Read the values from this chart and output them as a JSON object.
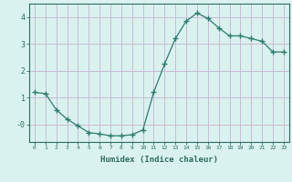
{
  "x": [
    0,
    1,
    2,
    3,
    4,
    5,
    6,
    7,
    8,
    9,
    10,
    11,
    12,
    13,
    14,
    15,
    16,
    17,
    18,
    19,
    20,
    21,
    22,
    23
  ],
  "y": [
    1.2,
    1.15,
    0.55,
    0.2,
    -0.05,
    -0.3,
    -0.35,
    -0.42,
    -0.42,
    -0.38,
    -0.2,
    1.2,
    2.25,
    3.2,
    3.85,
    4.15,
    3.95,
    3.6,
    3.3,
    3.3,
    3.2,
    3.1,
    2.7,
    2.7
  ],
  "xlabel": "Humidex (Indice chaleur)",
  "ylim": [
    -0.65,
    4.5
  ],
  "xlim": [
    -0.5,
    23.5
  ],
  "line_color": "#2e7b6e",
  "marker": "+",
  "marker_size": 4,
  "bg_color": "#d9f2f0",
  "grid_color": "#c8bcd4",
  "xlabel_color": "#2e6b5e",
  "tick_color": "#2e6b5e",
  "spine_color": "#2e6b5e"
}
